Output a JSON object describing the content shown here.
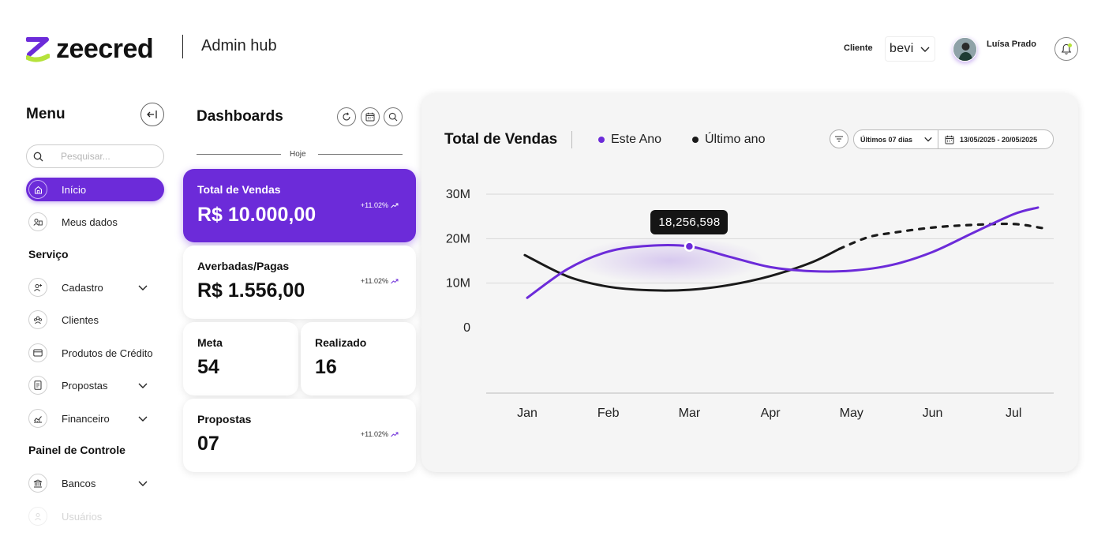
{
  "header": {
    "logo_text": "zeecred",
    "subtitle": "Admin hub",
    "client_label": "Cliente",
    "client_selected": "bevi",
    "user_name": "Luísa Prado",
    "brand_color": "#6c2bd9",
    "accent_color": "#b5e23b"
  },
  "sidebar": {
    "title": "Menu",
    "search_placeholder": "Pesquisar...",
    "items": [
      {
        "label": "Início",
        "icon": "home-icon",
        "active": true
      },
      {
        "label": "Meus dados",
        "icon": "user-data-icon"
      }
    ],
    "sections": [
      {
        "title": "Serviço",
        "items": [
          {
            "label": "Cadastro",
            "icon": "user-add-icon",
            "expandable": true
          },
          {
            "label": "Clientes",
            "icon": "users-icon"
          },
          {
            "label": "Produtos de Crédito",
            "icon": "credit-card-icon"
          },
          {
            "label": "Propostas",
            "icon": "document-icon",
            "expandable": true
          },
          {
            "label": "Financeiro",
            "icon": "finance-chart-icon",
            "expandable": true
          }
        ]
      },
      {
        "title": "Painel de Controle",
        "items": [
          {
            "label": "Bancos",
            "icon": "bank-icon",
            "expandable": true
          },
          {
            "label": "Usuários",
            "icon": "user-icon"
          }
        ]
      }
    ]
  },
  "dashboards": {
    "title": "Dashboards",
    "divider_label": "Hoje",
    "cards": {
      "vendas": {
        "label": "Total de Vendas",
        "value": "R$ 10.000,00",
        "trend": "+11.02%"
      },
      "averbadas": {
        "label": "Averbadas/Pagas",
        "value": "R$ 1.556,00",
        "trend": "+11.02%"
      },
      "meta": {
        "label": "Meta",
        "value": "54"
      },
      "realizado": {
        "label": "Realizado",
        "value": "16"
      },
      "propostas": {
        "label": "Propostas",
        "value": "07",
        "trend": "+11.02%"
      }
    }
  },
  "chart_panel": {
    "filter_range": "Últimos 07 dias",
    "date_range": "13/05/2025 - 20/05/2025",
    "tooltip": "18,256,598"
  },
  "chart_data": {
    "type": "line",
    "title": "Total de Vendas",
    "categories": [
      "Jan",
      "Feb",
      "Mar",
      "Apr",
      "May",
      "Jun",
      "Jul"
    ],
    "y_ticks": [
      "0",
      "10M",
      "20M",
      "30M"
    ],
    "ylim": [
      0,
      30000000
    ],
    "grid": true,
    "series": [
      {
        "name": "Este Ano",
        "color": "#6c2bd9",
        "x": [
          0,
          0.5,
          1,
          1.5,
          2,
          2.5,
          3,
          3.5,
          4,
          4.5,
          5,
          5.5,
          6,
          6.3
        ],
        "values": [
          6700000,
          13200000,
          17100000,
          18400000,
          18256598,
          15900000,
          13600000,
          12700000,
          12800000,
          14100000,
          17000000,
          21300000,
          25500000,
          27000000
        ]
      },
      {
        "name": "Último ano",
        "color": "#1a1a1a",
        "x": [
          -0.03,
          0.5,
          1,
          1.5,
          2,
          2.5,
          3,
          3.5,
          3.85,
          4.2,
          4.5,
          5,
          5.5,
          6,
          6.35
        ],
        "values": [
          16300000,
          11500000,
          9200000,
          8400000,
          8500000,
          9600000,
          11600000,
          14600000,
          17700000,
          20300000,
          21300000,
          22500000,
          23100000,
          23300000,
          22400000
        ],
        "dashed_from_x": 3.85
      }
    ]
  }
}
